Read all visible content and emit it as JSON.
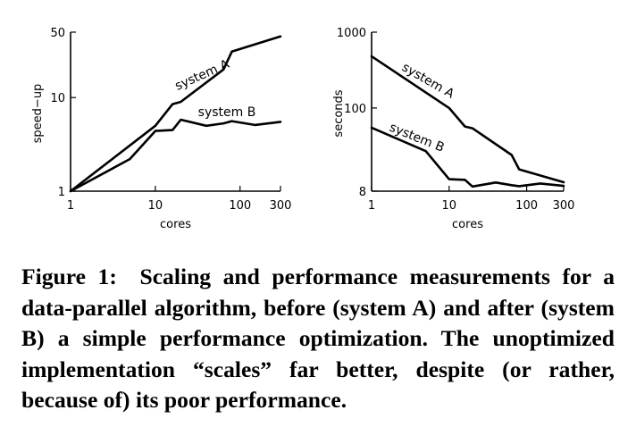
{
  "chart_data": [
    {
      "type": "line",
      "title": "",
      "xlabel": "cores",
      "ylabel": "speed−up",
      "xscale": "log",
      "yscale": "log",
      "xlim": [
        1,
        300
      ],
      "ylim": [
        1,
        50
      ],
      "xticks": [
        {
          "value": 1,
          "label": "1"
        },
        {
          "value": 10,
          "label": "10"
        },
        {
          "value": 100,
          "label": "100"
        },
        {
          "value": 300,
          "label": "300"
        }
      ],
      "yticks": [
        {
          "value": 1,
          "label": "1"
        },
        {
          "value": 10,
          "label": "10"
        },
        {
          "value": 50,
          "label": "50"
        }
      ],
      "grid": false,
      "series": [
        {
          "name": "system A",
          "x": [
            1,
            10,
            16,
            20,
            64,
            80,
            300
          ],
          "y": [
            1,
            5,
            8.5,
            9,
            20,
            31,
            45
          ]
        },
        {
          "name": "system B",
          "x": [
            1,
            5,
            10,
            16,
            20,
            40,
            64,
            80,
            150,
            300
          ],
          "y": [
            1,
            2.2,
            4.4,
            4.5,
            5.8,
            5,
            5.3,
            5.6,
            5.1,
            5.5
          ]
        }
      ]
    },
    {
      "type": "line",
      "title": "",
      "xlabel": "cores",
      "ylabel": "seconds",
      "xscale": "log",
      "yscale": "log",
      "xlim": [
        1,
        300
      ],
      "ylim": [
        8,
        1000
      ],
      "xticks": [
        {
          "value": 1,
          "label": "1"
        },
        {
          "value": 10,
          "label": "10"
        },
        {
          "value": 100,
          "label": "100"
        },
        {
          "value": 300,
          "label": "300"
        }
      ],
      "yticks": [
        {
          "value": 8,
          "label": "8"
        },
        {
          "value": 100,
          "label": "100"
        },
        {
          "value": 1000,
          "label": "1000"
        }
      ],
      "grid": false,
      "series": [
        {
          "name": "system A",
          "x": [
            1,
            10,
            16,
            20,
            64,
            80,
            300
          ],
          "y": [
            480,
            100,
            57,
            54,
            24,
            15.5,
            10.5
          ]
        },
        {
          "name": "system B",
          "x": [
            1,
            5,
            10,
            16,
            20,
            40,
            64,
            80,
            150,
            300
          ],
          "y": [
            55,
            27,
            11.5,
            11.3,
            9.2,
            10.4,
            9.6,
            9.3,
            10.1,
            9.4
          ]
        }
      ]
    }
  ],
  "caption": "Figure 1: Scaling and performance measurements for a data-parallel algorithm, before (system A) and after (system B) a simple performance optimization. The unoptimized implementation “scales” far better, despite (or rather, because of) its poor performance."
}
